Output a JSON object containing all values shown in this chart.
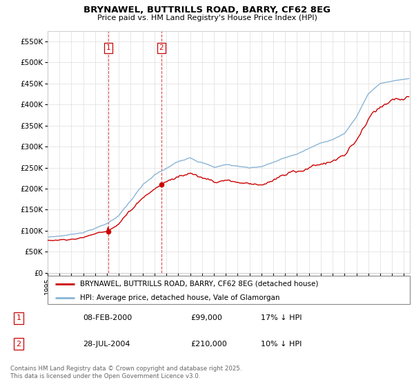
{
  "title": "BRYNAWEL, BUTTRILLS ROAD, BARRY, CF62 8EG",
  "subtitle": "Price paid vs. HM Land Registry's House Price Index (HPI)",
  "ylim": [
    0,
    575000
  ],
  "yticks": [
    0,
    50000,
    100000,
    150000,
    200000,
    250000,
    300000,
    350000,
    400000,
    450000,
    500000,
    550000
  ],
  "ytick_labels": [
    "£0",
    "£50K",
    "£100K",
    "£150K",
    "£200K",
    "£250K",
    "£300K",
    "£350K",
    "£400K",
    "£450K",
    "£500K",
    "£550K"
  ],
  "xlim_start": 1995.0,
  "xlim_end": 2025.5,
  "sale1_date": 2000.096,
  "sale1_price": 99000,
  "sale2_date": 2004.573,
  "sale2_price": 210000,
  "legend_entries": [
    "BRYNAWEL, BUTTRILLS ROAD, BARRY, CF62 8EG (detached house)",
    "HPI: Average price, detached house, Vale of Glamorgan"
  ],
  "table_rows": [
    {
      "num": "1",
      "date": "08-FEB-2000",
      "price": "£99,000",
      "hpi": "17% ↓ HPI"
    },
    {
      "num": "2",
      "date": "28-JUL-2004",
      "price": "£210,000",
      "hpi": "10% ↓ HPI"
    }
  ],
  "footer": "Contains HM Land Registry data © Crown copyright and database right 2025.\nThis data is licensed under the Open Government Licence v3.0.",
  "line_color_property": "#cc0000",
  "line_color_hpi": "#8ab4d4",
  "vline_color": "#cc0000",
  "background_color": "#ffffff",
  "grid_color": "#dddddd"
}
